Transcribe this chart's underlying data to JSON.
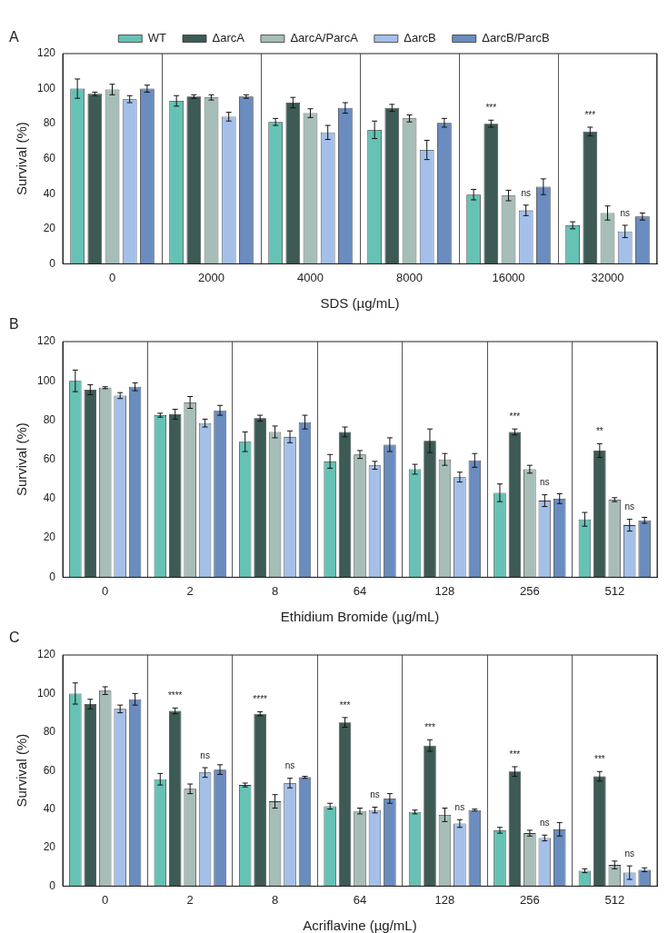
{
  "chart_data": [
    {
      "type": "bar",
      "title": "A",
      "xlabel": "SDS (µg/mL)",
      "ylabel": "Survival (%)",
      "categories": [
        "0",
        "2000",
        "4000",
        "8000",
        "16000",
        "32000"
      ],
      "ylim": [
        0,
        120
      ],
      "yticks": [
        0,
        20,
        40,
        60,
        80,
        100,
        120
      ],
      "grid": "x",
      "legend": "top",
      "series": [
        {
          "name": "WT",
          "color": "#66c2b4",
          "values": [
            100,
            93,
            81,
            76.5,
            39.5,
            22
          ],
          "errors": [
            5.5,
            3,
            2,
            5,
            3,
            2
          ]
        },
        {
          "name": "ΔarcA",
          "color": "#3d5a55",
          "values": [
            97,
            95.5,
            92,
            89,
            80,
            75.5
          ],
          "errors": [
            1,
            1,
            3,
            2,
            2,
            2.5
          ],
          "value_labels": [
            null,
            null,
            null,
            null,
            "***",
            "***"
          ]
        },
        {
          "name": "ΔarcA/ParcA",
          "color": "#a7bdb8",
          "values": [
            99.5,
            95,
            86,
            83,
            39,
            29
          ],
          "errors": [
            3,
            1.5,
            2.5,
            2,
            3,
            4
          ]
        },
        {
          "name": "ΔarcB",
          "color": "#a4c0e8",
          "values": [
            94,
            84,
            75,
            65,
            30.5,
            18.5
          ],
          "errors": [
            2,
            2.5,
            4,
            5.5,
            3,
            3.5
          ],
          "value_labels": [
            null,
            null,
            null,
            null,
            "ns",
            "ns"
          ]
        },
        {
          "name": "ΔarcB/ParcB",
          "color": "#6a8cbf",
          "values": [
            100,
            95.5,
            89,
            80.5,
            44,
            27
          ],
          "errors": [
            2,
            1,
            3,
            2.5,
            4.5,
            2
          ]
        }
      ]
    },
    {
      "type": "bar",
      "title": "B",
      "xlabel": "Ethidium Bromide (µg/mL)",
      "ylabel": "Survival (%)",
      "categories": [
        "0",
        "2",
        "8",
        "64",
        "128",
        "256",
        "512"
      ],
      "ylim": [
        0,
        120
      ],
      "yticks": [
        0,
        20,
        40,
        60,
        80,
        100,
        120
      ],
      "grid": "x",
      "series": [
        {
          "color": "#66c2b4",
          "values": [
            100,
            82.5,
            69,
            59,
            55,
            43,
            29.5
          ],
          "errors": [
            5.5,
            1,
            5,
            3.5,
            2.5,
            4.5,
            3.5
          ]
        },
        {
          "color": "#3d5a55",
          "values": [
            95.5,
            83,
            81,
            74,
            69.5,
            74,
            64.5
          ],
          "errors": [
            2.5,
            2.5,
            1.5,
            2.5,
            6,
            1.5,
            3.5
          ],
          "value_labels": [
            null,
            null,
            null,
            null,
            null,
            "***",
            "**"
          ]
        },
        {
          "color": "#a7bdb8",
          "values": [
            96.5,
            89,
            74,
            62.5,
            60,
            55,
            39.5
          ],
          "errors": [
            0.5,
            3,
            3,
            2,
            3,
            2,
            1
          ]
        },
        {
          "color": "#a4c0e8",
          "values": [
            92.5,
            78.5,
            71.5,
            57,
            51,
            39,
            26.5
          ],
          "errors": [
            1.5,
            2,
            3,
            2,
            2.5,
            3,
            3
          ],
          "value_labels": [
            null,
            null,
            null,
            null,
            null,
            "ns",
            "ns"
          ]
        },
        {
          "color": "#6a8cbf",
          "values": [
            97,
            85,
            79,
            67.5,
            59.5,
            40,
            29
          ],
          "errors": [
            2,
            2.5,
            3.5,
            3.5,
            3.5,
            2.5,
            1.5
          ]
        }
      ]
    },
    {
      "type": "bar",
      "title": "C",
      "xlabel": "Acriflavine (µg/mL)",
      "ylabel": "Survival (%)",
      "categories": [
        "0",
        "2",
        "8",
        "64",
        "128",
        "256",
        "512"
      ],
      "ylim": [
        0,
        120
      ],
      "yticks": [
        0,
        20,
        40,
        60,
        80,
        100,
        120
      ],
      "grid": "x",
      "series": [
        {
          "color": "#66c2b4",
          "values": [
            100,
            55.5,
            52.5,
            41.5,
            38.5,
            29,
            8
          ],
          "errors": [
            5.5,
            3,
            1,
            1.5,
            1,
            1.5,
            1
          ]
        },
        {
          "color": "#3d5a55",
          "values": [
            94.5,
            91,
            89.5,
            85,
            73,
            59.5,
            57
          ],
          "errors": [
            2.5,
            1.5,
            1,
            2.5,
            3,
            2.5,
            2.5
          ],
          "value_labels": [
            null,
            "****",
            "****",
            "***",
            "***",
            "***",
            "***"
          ]
        },
        {
          "color": "#a7bdb8",
          "values": [
            101.5,
            50.5,
            44,
            39,
            37,
            27.5,
            11
          ],
          "errors": [
            2,
            2.5,
            3.5,
            1.5,
            3.5,
            1.5,
            2
          ]
        },
        {
          "color": "#a4c0e8",
          "values": [
            92,
            59,
            53.5,
            39.5,
            32.5,
            25,
            7
          ],
          "errors": [
            2,
            2.5,
            2.5,
            1.5,
            2,
            1.5,
            3.5
          ],
          "value_labels": [
            null,
            "ns",
            "ns",
            "ns",
            "ns",
            "ns",
            "ns"
          ]
        },
        {
          "color": "#6a8cbf",
          "values": [
            97,
            60.5,
            56.5,
            45.5,
            39.5,
            29.5,
            8.5
          ],
          "errors": [
            3,
            2.5,
            0.5,
            2.5,
            0.5,
            3.5,
            1
          ]
        }
      ]
    }
  ]
}
